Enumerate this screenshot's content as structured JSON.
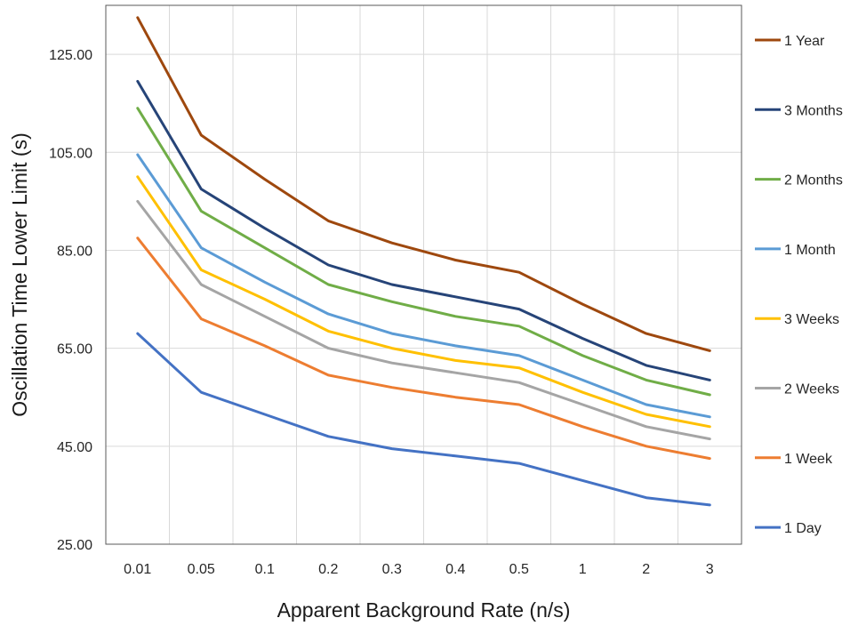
{
  "chart_data": {
    "type": "line",
    "xlabel": "Apparent Background Rate (n/s)",
    "ylabel": "Oscillation Time Lower Limit (s)",
    "categories": [
      "0.01",
      "0.05",
      "0.1",
      "0.2",
      "0.3",
      "0.4",
      "0.5",
      "1",
      "2",
      "3"
    ],
    "yticks": [
      "25.00",
      "45.00",
      "65.00",
      "85.00",
      "105.00",
      "125.00"
    ],
    "ylim": [
      25,
      135
    ],
    "grid": true,
    "legend_position": "right",
    "series": [
      {
        "name": "1 Year",
        "color": "#9E480E",
        "values": [
          132.5,
          108.5,
          99.5,
          91,
          86.5,
          83,
          80.5,
          74,
          68,
          64.5
        ]
      },
      {
        "name": "3 Months",
        "color": "#264478",
        "values": [
          119.5,
          97.5,
          89.5,
          82,
          78,
          75.5,
          73,
          67,
          61.5,
          58.5
        ]
      },
      {
        "name": "2 Months",
        "color": "#70AD47",
        "values": [
          114,
          93,
          85.5,
          78,
          74.5,
          71.5,
          69.5,
          63.5,
          58.5,
          55.5
        ]
      },
      {
        "name": "1 Month",
        "color": "#5B9BD5",
        "values": [
          104.5,
          85.5,
          78.5,
          72,
          68,
          65.5,
          63.5,
          58.5,
          53.5,
          51
        ]
      },
      {
        "name": "3 Weeks",
        "color": "#FFC000",
        "values": [
          100,
          81,
          75,
          68.5,
          65,
          62.5,
          61,
          56,
          51.5,
          49
        ]
      },
      {
        "name": "2 Weeks",
        "color": "#A5A5A5",
        "values": [
          95,
          78,
          71.5,
          65,
          62,
          60,
          58,
          53.5,
          49,
          46.5
        ]
      },
      {
        "name": "1 Week",
        "color": "#ED7D31",
        "values": [
          87.5,
          71,
          65.5,
          59.5,
          57,
          55,
          53.5,
          49,
          45,
          42.5
        ]
      },
      {
        "name": "1 Day",
        "color": "#4472C4",
        "values": [
          68,
          56,
          51.5,
          47,
          44.5,
          43,
          41.5,
          38,
          34.5,
          33
        ]
      }
    ]
  }
}
